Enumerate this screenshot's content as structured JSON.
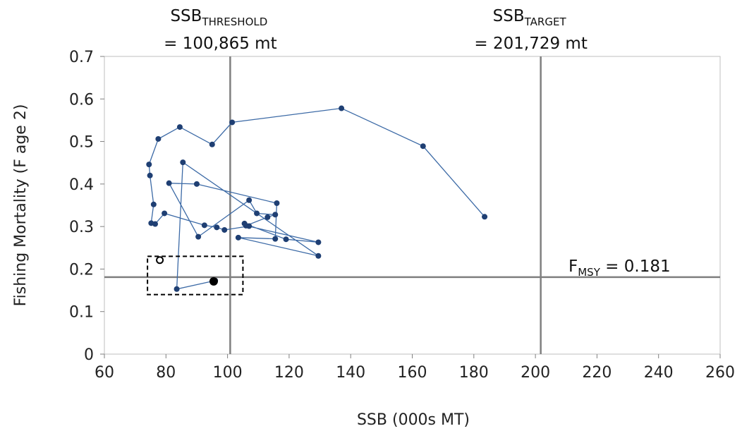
{
  "chart_data": {
    "type": "scatter",
    "xlabel": "SSB (000s MT)",
    "ylabel": "Fishing Mortality (F age 2)",
    "xlim": [
      60,
      260
    ],
    "ylim": [
      0,
      0.7
    ],
    "x_ticks": [
      "60",
      "80",
      "100",
      "120",
      "140",
      "160",
      "180",
      "200",
      "220",
      "240",
      "260"
    ],
    "y_ticks": [
      "0",
      "0.1",
      "0.2",
      "0.3",
      "0.4",
      "0.5",
      "0.6",
      "0.7"
    ],
    "grid": false,
    "series": [
      {
        "color": "#3c6aa6",
        "marker_color": "#1f3f73",
        "line": true,
        "points": [
          [
            183.5,
            0.323
          ],
          [
            163.5,
            0.489
          ],
          [
            137,
            0.578
          ],
          [
            101.5,
            0.545
          ],
          [
            95,
            0.493
          ],
          [
            84.5,
            0.534
          ],
          [
            77.5,
            0.506
          ],
          [
            74.5,
            0.446
          ],
          [
            74.8,
            0.42
          ],
          [
            76,
            0.352
          ],
          [
            75.2,
            0.308
          ],
          [
            76.5,
            0.306
          ],
          [
            79.5,
            0.331
          ],
          [
            92.5,
            0.303
          ],
          [
            96.5,
            0.298
          ],
          [
            99,
            0.292
          ],
          [
            107,
            0.301
          ],
          [
            105.5,
            0.307
          ],
          [
            119,
            0.27
          ],
          [
            129.5,
            0.263
          ],
          [
            106,
            0.302
          ],
          [
            113,
            0.322
          ],
          [
            115.5,
            0.328
          ],
          [
            109.5,
            0.331
          ],
          [
            107,
            0.362
          ],
          [
            90.5,
            0.276
          ],
          [
            81,
            0.402
          ],
          [
            90,
            0.4
          ],
          [
            116,
            0.355
          ],
          [
            115.5,
            0.271
          ],
          [
            103.5,
            0.274
          ],
          [
            129.5,
            0.231
          ],
          [
            85.5,
            0.451
          ],
          [
            83.5,
            0.153
          ],
          [
            96,
            0.173
          ]
        ]
      }
    ],
    "highlight_points": [
      {
        "x": 95.5,
        "y": 0.171,
        "style": "filled",
        "color": "#000000"
      },
      {
        "x": 78,
        "y": 0.221,
        "style": "open",
        "color": "#000000"
      }
    ],
    "highlight_box": {
      "x": [
        74,
        105
      ],
      "y": [
        0.14,
        0.23
      ]
    },
    "reference_lines": [
      {
        "orientation": "vertical",
        "value": 100.865,
        "label_main": "SSB",
        "label_sub": "THRESHOLD",
        "label_value": "= 100,865 mt",
        "color": "#7f7f7f"
      },
      {
        "orientation": "vertical",
        "value": 201.729,
        "label_main": "SSB",
        "label_sub": "TARGET",
        "label_value": "= 201,729 mt",
        "color": "#7f7f7f"
      },
      {
        "orientation": "horizontal",
        "value": 0.181,
        "label_main": "F",
        "label_sub": "MSY",
        "label_value": " = 0.181",
        "color": "#7f7f7f"
      }
    ]
  }
}
